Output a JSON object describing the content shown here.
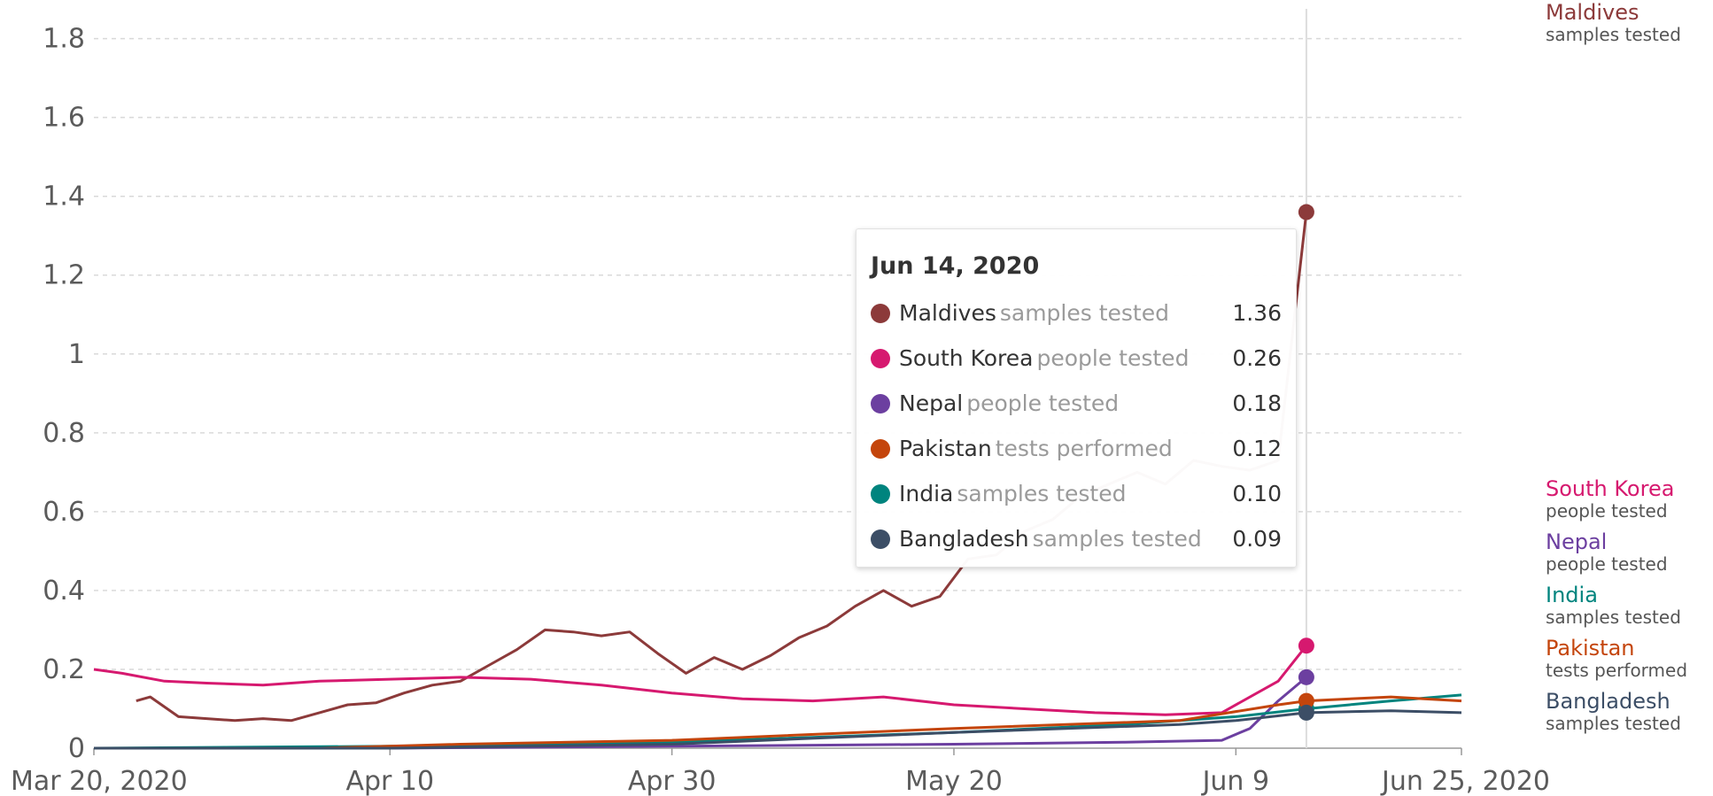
{
  "chart_data": {
    "type": "line",
    "x_ticks": [
      "Mar 20, 2020",
      "Apr 10",
      "Apr 30",
      "May 20",
      "Jun 9",
      "Jun 25, 2020"
    ],
    "y_ticks": [
      "0",
      "0.2",
      "0.4",
      "0.6",
      "0.8",
      "1",
      "1.2",
      "1.4",
      "1.6",
      "1.8"
    ],
    "ylim": [
      0,
      1.88
    ],
    "xlim": [
      "2020-03-20",
      "2020-06-25"
    ],
    "grid": "horizontal dashed",
    "series": [
      {
        "name": "Maldives",
        "metric": "samples tested",
        "color": "#8c3a3a",
        "points": [
          [
            "2020-03-23",
            0.12
          ],
          [
            "2020-03-24",
            0.13
          ],
          [
            "2020-03-26",
            0.08
          ],
          [
            "2020-03-28",
            0.075
          ],
          [
            "2020-03-30",
            0.07
          ],
          [
            "2020-04-01",
            0.075
          ],
          [
            "2020-04-03",
            0.07
          ],
          [
            "2020-04-05",
            0.09
          ],
          [
            "2020-04-07",
            0.11
          ],
          [
            "2020-04-09",
            0.115
          ],
          [
            "2020-04-11",
            0.14
          ],
          [
            "2020-04-13",
            0.16
          ],
          [
            "2020-04-15",
            0.17
          ],
          [
            "2020-04-17",
            0.21
          ],
          [
            "2020-04-19",
            0.25
          ],
          [
            "2020-04-21",
            0.3
          ],
          [
            "2020-04-23",
            0.295
          ],
          [
            "2020-04-25",
            0.285
          ],
          [
            "2020-04-27",
            0.295
          ],
          [
            "2020-04-29",
            0.24
          ],
          [
            "2020-05-01",
            0.19
          ],
          [
            "2020-05-03",
            0.23
          ],
          [
            "2020-05-05",
            0.2
          ],
          [
            "2020-05-07",
            0.235
          ],
          [
            "2020-05-09",
            0.28
          ],
          [
            "2020-05-11",
            0.31
          ],
          [
            "2020-05-13",
            0.36
          ],
          [
            "2020-05-15",
            0.4
          ],
          [
            "2020-05-17",
            0.36
          ],
          [
            "2020-05-19",
            0.385
          ],
          [
            "2020-05-21",
            0.48
          ],
          [
            "2020-05-23",
            0.49
          ],
          [
            "2020-05-25",
            0.55
          ],
          [
            "2020-05-27",
            0.58
          ],
          [
            "2020-05-29",
            0.64
          ],
          [
            "2020-05-31",
            0.67
          ],
          [
            "2020-06-02",
            0.7
          ],
          [
            "2020-06-04",
            0.67
          ],
          [
            "2020-06-06",
            0.73
          ],
          [
            "2020-06-08",
            0.715
          ],
          [
            "2020-06-10",
            0.705
          ],
          [
            "2020-06-12",
            0.73
          ],
          [
            "2020-06-14",
            1.36
          ]
        ]
      },
      {
        "name": "South Korea",
        "metric": "people tested",
        "color": "#d6196f",
        "points": [
          [
            "2020-03-20",
            0.2
          ],
          [
            "2020-03-22",
            0.19
          ],
          [
            "2020-03-25",
            0.17
          ],
          [
            "2020-03-28",
            0.165
          ],
          [
            "2020-04-01",
            0.16
          ],
          [
            "2020-04-05",
            0.17
          ],
          [
            "2020-04-10",
            0.175
          ],
          [
            "2020-04-15",
            0.18
          ],
          [
            "2020-04-20",
            0.175
          ],
          [
            "2020-04-25",
            0.16
          ],
          [
            "2020-04-30",
            0.14
          ],
          [
            "2020-05-05",
            0.125
          ],
          [
            "2020-05-10",
            0.12
          ],
          [
            "2020-05-15",
            0.13
          ],
          [
            "2020-05-20",
            0.11
          ],
          [
            "2020-05-25",
            0.1
          ],
          [
            "2020-05-30",
            0.09
          ],
          [
            "2020-06-04",
            0.085
          ],
          [
            "2020-06-08",
            0.09
          ],
          [
            "2020-06-12",
            0.17
          ],
          [
            "2020-06-14",
            0.26
          ]
        ]
      },
      {
        "name": "Nepal",
        "metric": "people tested",
        "color": "#6c3fa0",
        "points": [
          [
            "2020-03-20",
            0.0
          ],
          [
            "2020-04-10",
            0.0
          ],
          [
            "2020-04-30",
            0.005
          ],
          [
            "2020-05-20",
            0.01
          ],
          [
            "2020-06-01",
            0.015
          ],
          [
            "2020-06-08",
            0.02
          ],
          [
            "2020-06-10",
            0.05
          ],
          [
            "2020-06-12",
            0.12
          ],
          [
            "2020-06-14",
            0.18
          ]
        ]
      },
      {
        "name": "India",
        "metric": "samples tested",
        "color": "#00847e",
        "points": [
          [
            "2020-03-20",
            0.0
          ],
          [
            "2020-04-10",
            0.005
          ],
          [
            "2020-04-30",
            0.015
          ],
          [
            "2020-05-20",
            0.04
          ],
          [
            "2020-06-01",
            0.06
          ],
          [
            "2020-06-09",
            0.08
          ],
          [
            "2020-06-14",
            0.1
          ],
          [
            "2020-06-20",
            0.12
          ],
          [
            "2020-06-25",
            0.135
          ]
        ]
      },
      {
        "name": "Pakistan",
        "metric": "tests performed",
        "color": "#c4450c",
        "points": [
          [
            "2020-03-20",
            0.0
          ],
          [
            "2020-04-05",
            0.0
          ],
          [
            "2020-04-15",
            0.01
          ],
          [
            "2020-04-30",
            0.02
          ],
          [
            "2020-05-20",
            0.05
          ],
          [
            "2020-06-05",
            0.07
          ],
          [
            "2020-06-12",
            0.11
          ],
          [
            "2020-06-14",
            0.12
          ],
          [
            "2020-06-20",
            0.13
          ],
          [
            "2020-06-25",
            0.12
          ]
        ]
      },
      {
        "name": "Bangladesh",
        "metric": "samples tested",
        "color": "#3c4e66",
        "points": [
          [
            "2020-03-20",
            0.0
          ],
          [
            "2020-04-10",
            0.0
          ],
          [
            "2020-04-30",
            0.01
          ],
          [
            "2020-05-20",
            0.04
          ],
          [
            "2020-06-05",
            0.06
          ],
          [
            "2020-06-09",
            0.07
          ],
          [
            "2020-06-14",
            0.09
          ],
          [
            "2020-06-20",
            0.095
          ],
          [
            "2020-06-25",
            0.09
          ]
        ]
      }
    ],
    "hover_date": "2020-06-14",
    "end_labels": [
      {
        "name": "Maldives",
        "metric": "samples tested"
      },
      {
        "name": "South Korea",
        "metric": "people tested"
      },
      {
        "name": "Nepal",
        "metric": "people tested"
      },
      {
        "name": "India",
        "metric": "samples tested"
      },
      {
        "name": "Pakistan",
        "metric": "tests performed"
      },
      {
        "name": "Bangladesh",
        "metric": "samples tested"
      }
    ]
  },
  "tooltip": {
    "date": "Jun 14, 2020",
    "rows": [
      {
        "entity": "Maldives",
        "metric": "samples tested",
        "value": "1.36",
        "color": "#8c3a3a"
      },
      {
        "entity": "South Korea",
        "metric": "people tested",
        "value": "0.26",
        "color": "#d6196f"
      },
      {
        "entity": "Nepal",
        "metric": "people tested",
        "value": "0.18",
        "color": "#6c3fa0"
      },
      {
        "entity": "Pakistan",
        "metric": "tests performed",
        "value": "0.12",
        "color": "#c4450c"
      },
      {
        "entity": "India",
        "metric": "samples tested",
        "value": "0.10",
        "color": "#00847e"
      },
      {
        "entity": "Bangladesh",
        "metric": "samples tested",
        "value": "0.09",
        "color": "#3c4e66"
      }
    ]
  }
}
